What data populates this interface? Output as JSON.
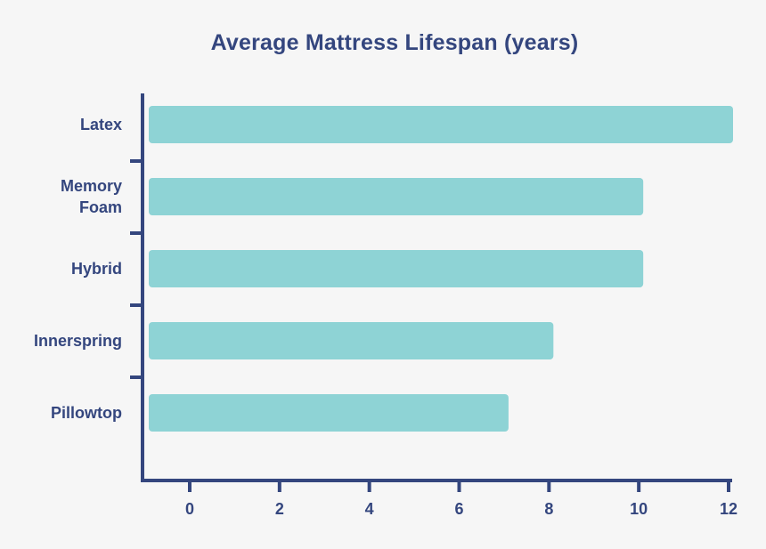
{
  "colors": {
    "background": "#f6f6f6",
    "bar": "#8ed3d5",
    "axis": "#34467e",
    "text": "#34467e"
  },
  "chart_data": {
    "type": "bar",
    "orientation": "horizontal",
    "title": "Average Mattress Lifespan (years)",
    "xlabel": "",
    "ylabel": "",
    "categories": [
      "Latex",
      "Memory Foam",
      "Hybrid",
      "Innerspring",
      "Pillowtop"
    ],
    "category_lines": [
      [
        "Latex"
      ],
      [
        "Memory",
        "Foam"
      ],
      [
        "Hybrid"
      ],
      [
        "Innerspring"
      ],
      [
        "Pillowtop"
      ]
    ],
    "values": [
      12,
      10,
      10,
      8,
      7
    ],
    "xlim": [
      0,
      12
    ],
    "xticks": [
      0,
      2,
      4,
      6,
      8,
      10,
      12
    ],
    "grid": false,
    "legend": "none"
  }
}
